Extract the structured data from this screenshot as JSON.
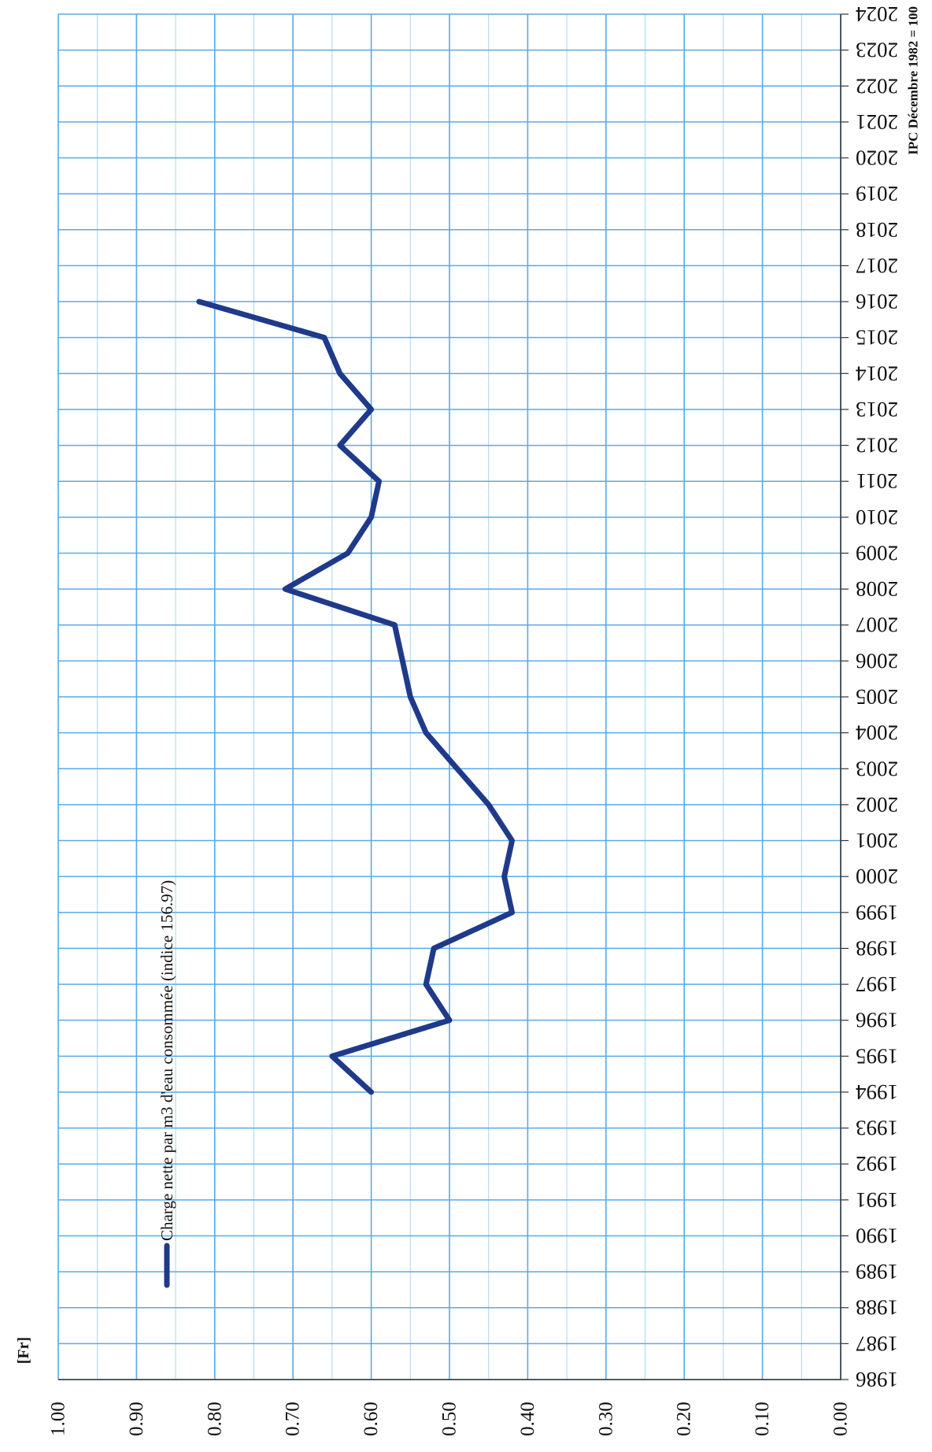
{
  "unit_label": "[Fr]",
  "index_note": "IPC Décembre 1982 = 100",
  "chart_data": {
    "type": "line",
    "orientation": "rotated-90",
    "x": [
      1986,
      1987,
      1988,
      1989,
      1990,
      1991,
      1992,
      1993,
      1994,
      1995,
      1996,
      1997,
      1998,
      1999,
      2000,
      2001,
      2002,
      2003,
      2004,
      2005,
      2006,
      2007,
      2008,
      2009,
      2010,
      2011,
      2012,
      2013,
      2014,
      2015,
      2016,
      2017,
      2018,
      2019,
      2020,
      2021,
      2022,
      2023,
      2024
    ],
    "x_tick_labels": [
      "1986",
      "1987",
      "1988",
      "1989",
      "1990",
      "1991",
      "1992",
      "1993",
      "1994",
      "1995",
      "1996",
      "1997",
      "1998",
      "1999",
      "2000",
      "2001",
      "2002",
      "2003",
      "2004",
      "2005",
      "2006",
      "2007",
      "2008",
      "2009",
      "2010",
      "2011",
      "2012",
      "2013",
      "2014",
      "2015",
      "2016",
      "2017",
      "2018",
      "2019",
      "2020",
      "2021",
      "2022",
      "2023",
      "2024"
    ],
    "y_tick_labels": [
      "0.00",
      "0.10",
      "0.20",
      "0.30",
      "0.40",
      "0.50",
      "0.60",
      "0.70",
      "0.80",
      "0.90",
      "1.00"
    ],
    "ylim": [
      0,
      1
    ],
    "xlim": [
      1986,
      2024
    ],
    "grid": true,
    "legend_position": "top-left",
    "series": [
      {
        "name": "Charge nette par m3 d'eau consommée (indice 156.97)",
        "color": "#1f3a8a",
        "points": [
          [
            1994,
            0.6
          ],
          [
            1995,
            0.65
          ],
          [
            1996,
            0.5
          ],
          [
            1997,
            0.53
          ],
          [
            1998,
            0.52
          ],
          [
            1999,
            0.42
          ],
          [
            2000,
            0.43
          ],
          [
            2001,
            0.42
          ],
          [
            2002,
            0.45
          ],
          [
            2003,
            0.49
          ],
          [
            2004,
            0.53
          ],
          [
            2005,
            0.55
          ],
          [
            2006,
            0.56
          ],
          [
            2007,
            0.57
          ],
          [
            2008,
            0.71
          ],
          [
            2009,
            0.63
          ],
          [
            2010,
            0.6
          ],
          [
            2011,
            0.59
          ],
          [
            2012,
            0.64
          ],
          [
            2013,
            0.6
          ],
          [
            2014,
            0.64
          ],
          [
            2015,
            0.66
          ],
          [
            2016,
            0.82
          ]
        ]
      }
    ]
  }
}
